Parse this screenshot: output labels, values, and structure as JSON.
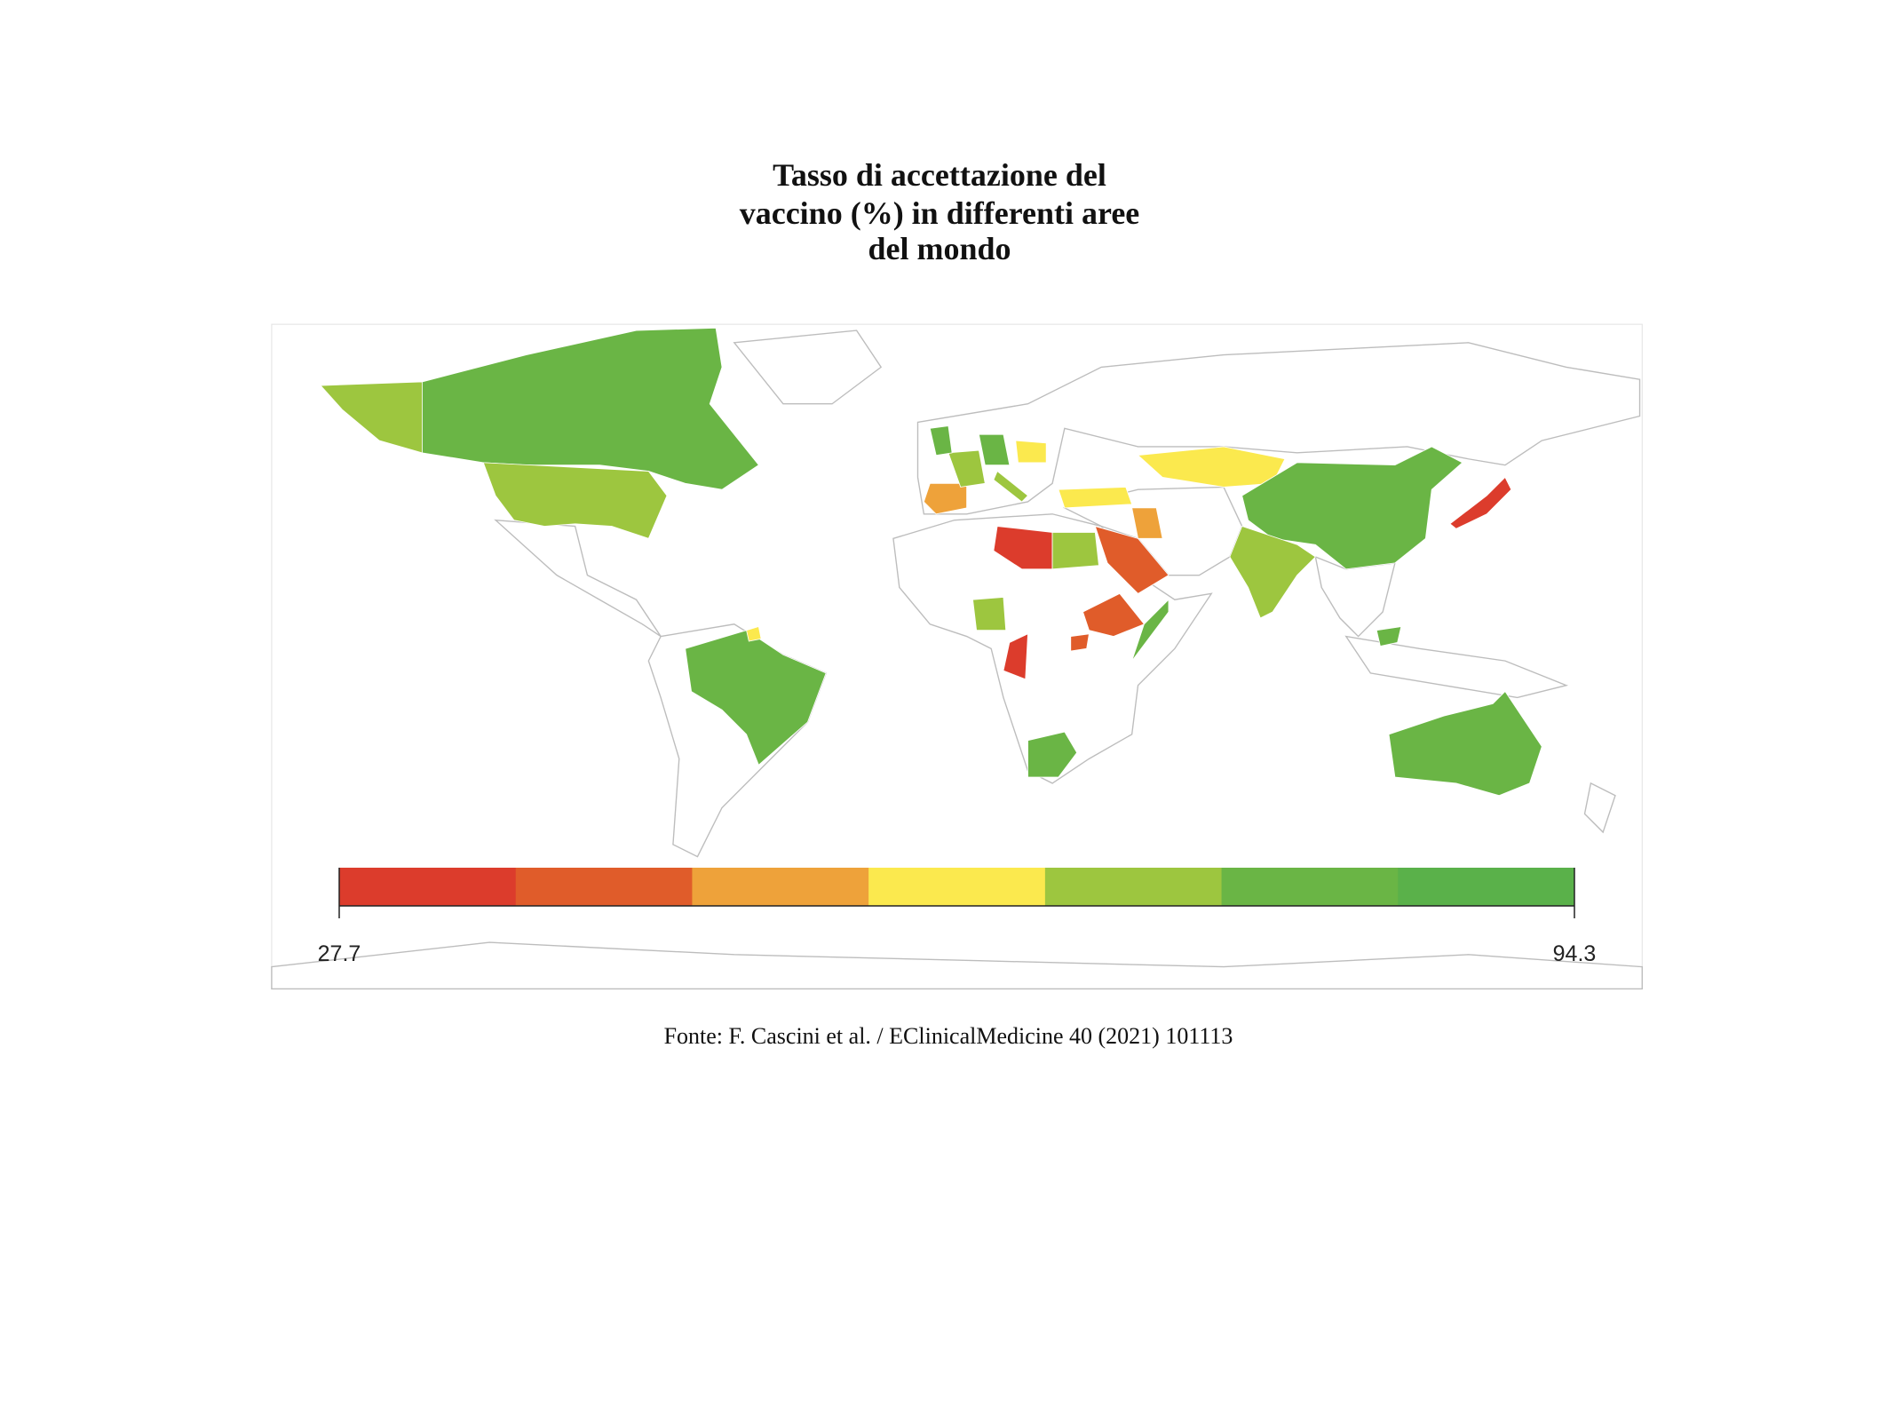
{
  "title": [
    "Tasso di accettazione del",
    "vaccino (%) in differenti aree",
    "del mondo"
  ],
  "legend": {
    "min": 27.7,
    "max": 94.3,
    "colors": [
      "#dc3c2c",
      "#e05c2a",
      "#eea23a",
      "#fbe94e",
      "#9dc63f",
      "#6ab545",
      "#5ab14a"
    ]
  },
  "source": "Fonte: F. Cascini et al. / EClinicalMedicine 40 (2021) 101113"
}
